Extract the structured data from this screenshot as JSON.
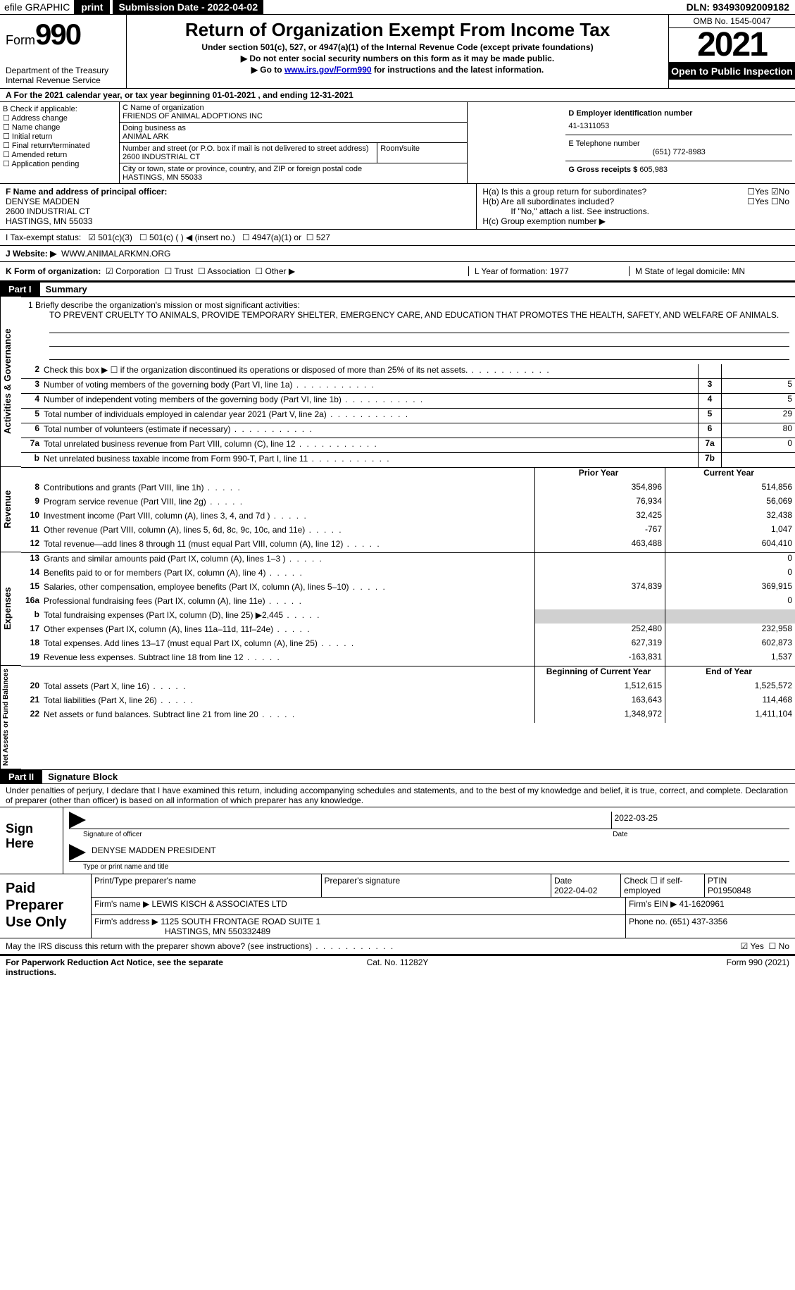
{
  "topbar": {
    "efile": "efile GRAPHIC",
    "print": "print",
    "subdate_label": "Submission Date - 2022-04-02",
    "dln": "DLN: 93493092009182"
  },
  "header": {
    "form_word": "Form",
    "form_num": "990",
    "dept": "Department of the Treasury",
    "irs": "Internal Revenue Service",
    "title": "Return of Organization Exempt From Income Tax",
    "sub1": "Under section 501(c), 527, or 4947(a)(1) of the Internal Revenue Code (except private foundations)",
    "sub2": "▶ Do not enter social security numbers on this form as it may be made public.",
    "sub3_pre": "▶ Go to ",
    "sub3_link": "www.irs.gov/Form990",
    "sub3_post": " for instructions and the latest information.",
    "omb": "OMB No. 1545-0047",
    "year": "2021",
    "open": "Open to Public Inspection"
  },
  "row_a": "A  For the 2021 calendar year, or tax year beginning 01-01-2021    , and ending 12-31-2021",
  "colB": {
    "head": "B Check if applicable:",
    "i1": "Address change",
    "i2": "Name change",
    "i3": "Initial return",
    "i4": "Final return/terminated",
    "i5": "Amended return",
    "i6": "Application pending"
  },
  "colC": {
    "name_lbl": "C Name of organization",
    "name": "FRIENDS OF ANIMAL ADOPTIONS INC",
    "dba_lbl": "Doing business as",
    "dba": "ANIMAL ARK",
    "street_lbl": "Number and street (or P.O. box if mail is not delivered to street address)",
    "street": "2600 INDUSTRIAL CT",
    "room_lbl": "Room/suite",
    "city_lbl": "City or town, state or province, country, and ZIP or foreign postal code",
    "city": "HASTINGS, MN  55033"
  },
  "colD": {
    "ein_lbl": "D Employer identification number",
    "ein": "41-1311053",
    "tel_lbl": "E Telephone number",
    "tel": "(651) 772-8983",
    "gross_lbl": "G Gross receipts $",
    "gross": "605,983"
  },
  "rowF": {
    "lbl": "F Name and address of principal officer:",
    "name": "DENYSE MADDEN",
    "addr1": "2600 INDUSTRIAL CT",
    "addr2": "HASTINGS, MN  55033"
  },
  "rowH": {
    "ha": "H(a)  Is this a group return for subordinates?",
    "ha_yes": "Yes",
    "ha_no": "No",
    "hb": "H(b)  Are all subordinates included?",
    "hb_yes": "Yes",
    "hb_no": "No",
    "hb_note": "If \"No,\" attach a list. See instructions.",
    "hc": "H(c)  Group exemption number ▶"
  },
  "rowI": {
    "lbl": "I    Tax-exempt status:",
    "o1": "501(c)(3)",
    "o2": "501(c) (  ) ◀ (insert no.)",
    "o3": "4947(a)(1) or",
    "o4": "527"
  },
  "rowJ": {
    "lbl": "J   Website: ▶",
    "val": "WWW.ANIMALARKMN.ORG"
  },
  "rowK": {
    "lbl": "K Form of organization:",
    "o1": "Corporation",
    "o2": "Trust",
    "o3": "Association",
    "o4": "Other ▶",
    "L": "L Year of formation: 1977",
    "M": "M State of legal domicile: MN"
  },
  "part1": {
    "label": "Part I",
    "title": "Summary"
  },
  "mission": {
    "lead": "1  Briefly describe the organization's mission or most significant activities:",
    "text": "TO PREVENT CRUELTY TO ANIMALS, PROVIDE TEMPORARY SHELTER, EMERGENCY CARE, AND EDUCATION THAT PROMOTES THE HEALTH, SAFETY, AND WELFARE OF ANIMALS."
  },
  "activities_lines": [
    {
      "n": "2",
      "d": "Check this box ▶ ☐  if the organization discontinued its operations or disposed of more than 25% of its net assets.",
      "box": "",
      "v": ""
    },
    {
      "n": "3",
      "d": "Number of voting members of the governing body (Part VI, line 1a)",
      "box": "3",
      "v": "5"
    },
    {
      "n": "4",
      "d": "Number of independent voting members of the governing body (Part VI, line 1b)",
      "box": "4",
      "v": "5"
    },
    {
      "n": "5",
      "d": "Total number of individuals employed in calendar year 2021 (Part V, line 2a)",
      "box": "5",
      "v": "29"
    },
    {
      "n": "6",
      "d": "Total number of volunteers (estimate if necessary)",
      "box": "6",
      "v": "80"
    },
    {
      "n": "7a",
      "d": "Total unrelated business revenue from Part VIII, column (C), line 12",
      "box": "7a",
      "v": "0"
    },
    {
      "n": "b",
      "d": "Net unrelated business taxable income from Form 990-T, Part I, line 11",
      "box": "7b",
      "v": ""
    }
  ],
  "pycy_header": {
    "prior": "Prior Year",
    "curr": "Current Year"
  },
  "revenue": [
    {
      "n": "8",
      "d": "Contributions and grants (Part VIII, line 1h)",
      "p": "354,896",
      "c": "514,856"
    },
    {
      "n": "9",
      "d": "Program service revenue (Part VIII, line 2g)",
      "p": "76,934",
      "c": "56,069"
    },
    {
      "n": "10",
      "d": "Investment income (Part VIII, column (A), lines 3, 4, and 7d )",
      "p": "32,425",
      "c": "32,438"
    },
    {
      "n": "11",
      "d": "Other revenue (Part VIII, column (A), lines 5, 6d, 8c, 9c, 10c, and 11e)",
      "p": "-767",
      "c": "1,047"
    },
    {
      "n": "12",
      "d": "Total revenue—add lines 8 through 11 (must equal Part VIII, column (A), line 12)",
      "p": "463,488",
      "c": "604,410"
    }
  ],
  "expenses": [
    {
      "n": "13",
      "d": "Grants and similar amounts paid (Part IX, column (A), lines 1–3 )",
      "p": "",
      "c": "0"
    },
    {
      "n": "14",
      "d": "Benefits paid to or for members (Part IX, column (A), line 4)",
      "p": "",
      "c": "0"
    },
    {
      "n": "15",
      "d": "Salaries, other compensation, employee benefits (Part IX, column (A), lines 5–10)",
      "p": "374,839",
      "c": "369,915"
    },
    {
      "n": "16a",
      "d": "Professional fundraising fees (Part IX, column (A), line 11e)",
      "p": "",
      "c": "0"
    },
    {
      "n": "b",
      "d": "Total fundraising expenses (Part IX, column (D), line 25) ▶2,445",
      "p": "shade",
      "c": "shade"
    },
    {
      "n": "17",
      "d": "Other expenses (Part IX, column (A), lines 11a–11d, 11f–24e)",
      "p": "252,480",
      "c": "232,958"
    },
    {
      "n": "18",
      "d": "Total expenses. Add lines 13–17 (must equal Part IX, column (A), line 25)",
      "p": "627,319",
      "c": "602,873"
    },
    {
      "n": "19",
      "d": "Revenue less expenses. Subtract line 18 from line 12",
      "p": "-163,831",
      "c": "1,537"
    }
  ],
  "netassets_header": {
    "prior": "Beginning of Current Year",
    "curr": "End of Year"
  },
  "netassets": [
    {
      "n": "20",
      "d": "Total assets (Part X, line 16)",
      "p": "1,512,615",
      "c": "1,525,572"
    },
    {
      "n": "21",
      "d": "Total liabilities (Part X, line 26)",
      "p": "163,643",
      "c": "114,468"
    },
    {
      "n": "22",
      "d": "Net assets or fund balances. Subtract line 21 from line 20",
      "p": "1,348,972",
      "c": "1,411,104"
    }
  ],
  "vtabs": {
    "act": "Activities & Governance",
    "rev": "Revenue",
    "exp": "Expenses",
    "net": "Net Assets or Fund Balances"
  },
  "part2": {
    "label": "Part II",
    "title": "Signature Block"
  },
  "sig": {
    "declare": "Under penalties of perjury, I declare that I have examined this return, including accompanying schedules and statements, and to the best of my knowledge and belief, it is true, correct, and complete. Declaration of preparer (other than officer) is based on all information of which preparer has any knowledge.",
    "sign_here": "Sign Here",
    "sig_officer": "Signature of officer",
    "date": "Date",
    "date_val": "2022-03-25",
    "name": "DENYSE MADDEN  PRESIDENT",
    "type_name": "Type or print name and title"
  },
  "prep": {
    "lbl": "Paid Preparer Use Only",
    "c1": "Print/Type preparer's name",
    "c2": "Preparer's signature",
    "c3_lbl": "Date",
    "c3": "2022-04-02",
    "c4": "Check ☐ if self-employed",
    "c5_lbl": "PTIN",
    "c5": "P01950848",
    "firm_name_lbl": "Firm's name    ▶",
    "firm_name": "LEWIS KISCH & ASSOCIATES LTD",
    "firm_ein_lbl": "Firm's EIN ▶",
    "firm_ein": "41-1620961",
    "firm_addr_lbl": "Firm's address ▶",
    "firm_addr": "1125 SOUTH FRONTAGE ROAD SUITE 1",
    "firm_addr2": "HASTINGS, MN  550332489",
    "phone_lbl": "Phone no.",
    "phone": "(651) 437-3356"
  },
  "may_irs": {
    "q": "May the IRS discuss this return with the preparer shown above? (see instructions)",
    "yes": "Yes",
    "no": "No"
  },
  "footer": {
    "left": "For Paperwork Reduction Act Notice, see the separate instructions.",
    "center": "Cat. No. 11282Y",
    "right": "Form 990 (2021)"
  }
}
